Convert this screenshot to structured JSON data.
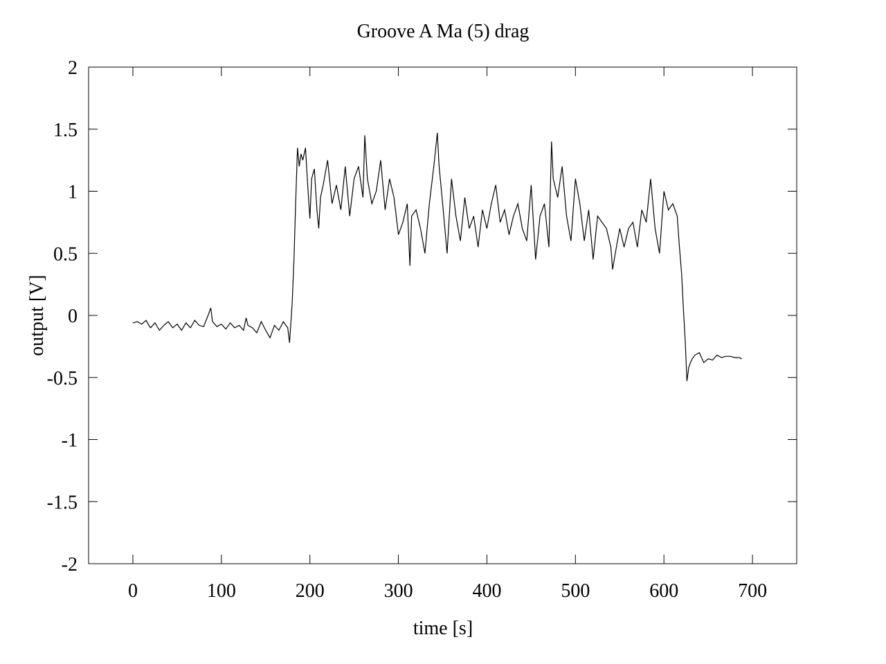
{
  "chart_data": {
    "type": "line",
    "title": "Groove A  Ma (5) drag",
    "xlabel": "time [s]",
    "ylabel": "output [V]",
    "xlim": [
      -50,
      750
    ],
    "ylim": [
      -2,
      2
    ],
    "xticks": [
      0,
      100,
      200,
      300,
      400,
      500,
      600,
      700
    ],
    "xtick_labels": [
      "0",
      "100",
      "200",
      "300",
      "400",
      "500",
      "600",
      "700"
    ],
    "yticks": [
      2,
      1.5,
      1,
      0.5,
      0,
      -0.5,
      -1,
      -1.5,
      -2
    ],
    "ytick_labels": [
      "2",
      "1.5",
      "1",
      "0.5",
      "0",
      "-0.5",
      "-1",
      "-1.5",
      "-2"
    ],
    "grid": false,
    "legend": "none",
    "line_color": "#000000",
    "series": [
      {
        "x": [
          0,
          5,
          10,
          15,
          18,
          20,
          25,
          30,
          35,
          40,
          45,
          50,
          55,
          60,
          65,
          70,
          75,
          80,
          85,
          88,
          90,
          95,
          100,
          105,
          110,
          115,
          120,
          125,
          128,
          130,
          135,
          140,
          145,
          150,
          155,
          160,
          165,
          170,
          175,
          177,
          180,
          182,
          184,
          186,
          188,
          190,
          192,
          195,
          198,
          200,
          202,
          205,
          208,
          210,
          212,
          215,
          220,
          225,
          230,
          235,
          240,
          245,
          250,
          255,
          260,
          262,
          265,
          270,
          275,
          280,
          285,
          290,
          295,
          300,
          305,
          310,
          313,
          315,
          320,
          325,
          330,
          335,
          340,
          344,
          346,
          350,
          355,
          360,
          365,
          370,
          375,
          380,
          385,
          390,
          395,
          400,
          405,
          410,
          415,
          420,
          425,
          430,
          435,
          440,
          445,
          450,
          455,
          460,
          465,
          470,
          473,
          475,
          480,
          485,
          490,
          495,
          500,
          505,
          510,
          515,
          520,
          525,
          530,
          535,
          540,
          542,
          545,
          550,
          555,
          560,
          565,
          570,
          575,
          580,
          585,
          590,
          595,
          600,
          605,
          610,
          615,
          617,
          620,
          622,
          624,
          626,
          628,
          630,
          632,
          635,
          640,
          645,
          650,
          655,
          660,
          665,
          670,
          675,
          680,
          685,
          688
        ],
        "y": [
          -0.06,
          -0.05,
          -0.07,
          -0.04,
          -0.08,
          -0.1,
          -0.06,
          -0.12,
          -0.08,
          -0.05,
          -0.1,
          -0.07,
          -0.12,
          -0.06,
          -0.1,
          -0.04,
          -0.08,
          -0.09,
          0.0,
          0.06,
          -0.05,
          -0.09,
          -0.07,
          -0.11,
          -0.06,
          -0.1,
          -0.08,
          -0.12,
          -0.02,
          -0.08,
          -0.1,
          -0.14,
          -0.05,
          -0.12,
          -0.18,
          -0.08,
          -0.12,
          -0.05,
          -0.1,
          -0.22,
          0.1,
          0.45,
          0.92,
          1.35,
          1.2,
          1.3,
          1.25,
          1.35,
          1.0,
          0.78,
          1.1,
          1.18,
          0.85,
          0.7,
          0.95,
          1.05,
          1.25,
          0.9,
          1.05,
          0.85,
          1.2,
          0.8,
          1.1,
          1.2,
          0.95,
          1.45,
          1.1,
          0.9,
          1.0,
          1.25,
          0.85,
          1.1,
          0.95,
          0.65,
          0.75,
          0.9,
          0.4,
          0.8,
          0.85,
          0.7,
          0.5,
          0.9,
          1.2,
          1.47,
          1.2,
          0.9,
          0.5,
          1.1,
          0.8,
          0.6,
          0.95,
          0.7,
          0.8,
          0.55,
          0.85,
          0.7,
          0.9,
          1.05,
          0.75,
          0.85,
          0.65,
          0.8,
          0.9,
          0.7,
          0.6,
          1.05,
          0.45,
          0.8,
          0.9,
          0.55,
          1.4,
          1.1,
          0.95,
          1.2,
          0.8,
          0.6,
          1.1,
          0.9,
          0.6,
          0.85,
          0.45,
          0.8,
          0.75,
          0.7,
          0.55,
          0.37,
          0.5,
          0.7,
          0.55,
          0.7,
          0.75,
          0.55,
          0.85,
          0.75,
          1.1,
          0.7,
          0.5,
          1.0,
          0.85,
          0.9,
          0.8,
          0.6,
          0.33,
          0.05,
          -0.2,
          -0.53,
          -0.42,
          -0.38,
          -0.35,
          -0.32,
          -0.3,
          -0.38,
          -0.35,
          -0.36,
          -0.32,
          -0.34,
          -0.33,
          -0.33,
          -0.34,
          -0.34,
          -0.35
        ]
      }
    ]
  }
}
